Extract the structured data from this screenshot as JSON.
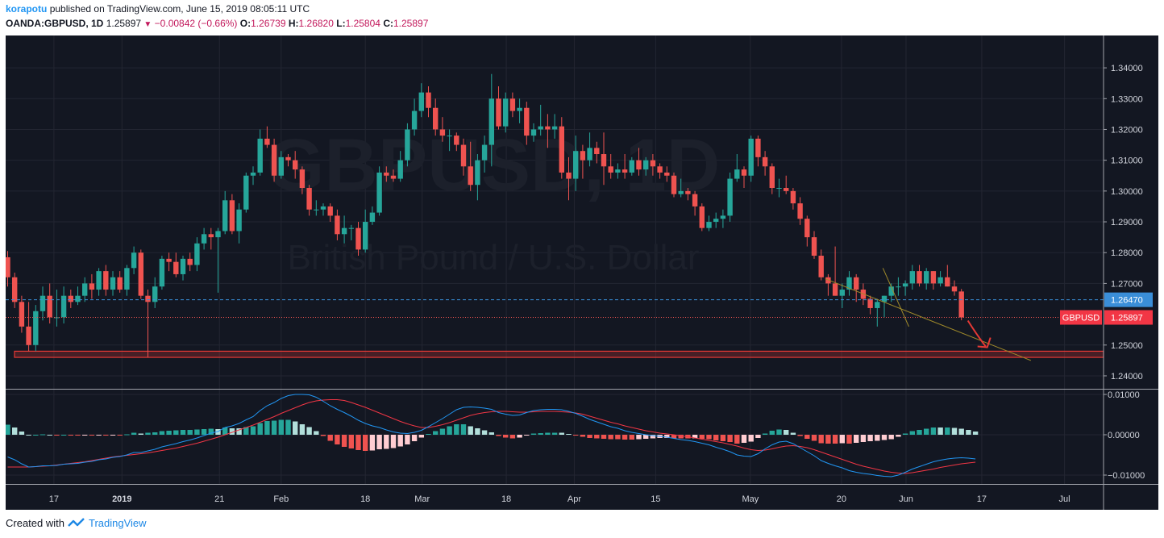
{
  "header": {
    "user": "korapotu",
    "published": "published on TradingView.com, June 15, 2019 08:05:11 UTC",
    "symbol": "OANDA:GBPUSD, 1D",
    "last": "1.25897",
    "change": "−0.00842 (−0.66%)",
    "o_label": "O:",
    "o": "1.26739",
    "h_label": "H:",
    "h": "1.26820",
    "l_label": "L:",
    "l": "1.25804",
    "c_label": "C:",
    "c": "1.25897"
  },
  "footer": {
    "created": "Created with",
    "brand": "TradingView"
  },
  "watermark": {
    "ticker": "GBPUSD, 1D",
    "name": "British Pound / U.S. Dollar"
  },
  "colors": {
    "background": "#131722",
    "grid": "#232632",
    "up": "#26a69a",
    "down": "#ef5350",
    "macd_line": "#2196f3",
    "signal_line": "#f23645",
    "hist_up_strong": "#26a69a",
    "hist_up_weak": "#b2dfdb",
    "hist_down_strong": "#ef5350",
    "hist_down_weak": "#ffcdd2",
    "annotation": "#e53935",
    "trendline": "#a08a2a",
    "price_line_blue": "#3a8ed8"
  },
  "chart_data": [
    {
      "type": "candlestick",
      "title": "GBPUSD, 1D",
      "y_ticks": [
        "1.34000",
        "1.33000",
        "1.32000",
        "1.31000",
        "1.30000",
        "1.29000",
        "1.28000",
        "1.27000",
        "1.25000",
        "1.24000"
      ],
      "x_ticks": [
        "17",
        "2019",
        "21",
        "Feb",
        "18",
        "Mar",
        "18",
        "Apr",
        "15",
        "May",
        "20",
        "Jun",
        "17",
        "Jul"
      ],
      "ylim": [
        1.2358,
        1.3505
      ],
      "last_price_label": "GBPUSD",
      "last_price": "1.25897",
      "blue_level": "1.26470",
      "support_zone": [
        1.246,
        1.248
      ],
      "trendline": {
        "from": [
          "2019-05-16",
          1.2715
        ],
        "to": [
          "2019-06-30",
          1.245
        ]
      },
      "trendline2": {
        "from": [
          "2019-05-28",
          1.275
        ],
        "to": [
          "2019-06-03",
          1.256
        ]
      },
      "arrow": "down",
      "candles": [
        [
          1.2785,
          1.2805,
          1.269,
          1.272
        ],
        [
          1.272,
          1.2735,
          1.262,
          1.264
        ],
        [
          1.264,
          1.266,
          1.254,
          1.256
        ],
        [
          1.256,
          1.264,
          1.248,
          1.25
        ],
        [
          1.25,
          1.263,
          1.248,
          1.261
        ],
        [
          1.261,
          1.269,
          1.258,
          1.266
        ],
        [
          1.266,
          1.27,
          1.257,
          1.259
        ],
        [
          1.259,
          1.268,
          1.256,
          1.259
        ],
        [
          1.259,
          1.269,
          1.257,
          1.266
        ],
        [
          1.266,
          1.268,
          1.262,
          1.264
        ],
        [
          1.264,
          1.269,
          1.263,
          1.266
        ],
        [
          1.266,
          1.272,
          1.264,
          1.27
        ],
        [
          1.27,
          1.273,
          1.265,
          1.268
        ],
        [
          1.268,
          1.275,
          1.266,
          1.274
        ],
        [
          1.274,
          1.276,
          1.266,
          1.268
        ],
        [
          1.268,
          1.274,
          1.266,
          1.272
        ],
        [
          1.272,
          1.274,
          1.267,
          1.268
        ],
        [
          1.268,
          1.276,
          1.266,
          1.275
        ],
        [
          1.275,
          1.282,
          1.273,
          1.28
        ],
        [
          1.28,
          1.281,
          1.265,
          1.266
        ],
        [
          1.266,
          1.268,
          1.246,
          1.264
        ],
        [
          1.264,
          1.272,
          1.262,
          1.269
        ],
        [
          1.269,
          1.279,
          1.268,
          1.278
        ],
        [
          1.278,
          1.28,
          1.274,
          1.277
        ],
        [
          1.277,
          1.28,
          1.272,
          1.273
        ],
        [
          1.273,
          1.279,
          1.271,
          1.278
        ],
        [
          1.278,
          1.28,
          1.274,
          1.276
        ],
        [
          1.276,
          1.285,
          1.274,
          1.283
        ],
        [
          1.283,
          1.288,
          1.281,
          1.286
        ],
        [
          1.286,
          1.288,
          1.281,
          1.285
        ],
        [
          1.285,
          1.288,
          1.267,
          1.287
        ],
        [
          1.287,
          1.3,
          1.286,
          1.297
        ],
        [
          1.297,
          1.299,
          1.286,
          1.287
        ],
        [
          1.287,
          1.296,
          1.283,
          1.294
        ],
        [
          1.294,
          1.306,
          1.293,
          1.305
        ],
        [
          1.305,
          1.308,
          1.302,
          1.306
        ],
        [
          1.306,
          1.32,
          1.305,
          1.317
        ],
        [
          1.317,
          1.321,
          1.314,
          1.315
        ],
        [
          1.315,
          1.317,
          1.303,
          1.305
        ],
        [
          1.305,
          1.313,
          1.304,
          1.311
        ],
        [
          1.311,
          1.312,
          1.308,
          1.31
        ],
        [
          1.31,
          1.313,
          1.304,
          1.307
        ],
        [
          1.307,
          1.308,
          1.299,
          1.301
        ],
        [
          1.301,
          1.302,
          1.292,
          1.294
        ],
        [
          1.294,
          1.297,
          1.292,
          1.294
        ],
        [
          1.294,
          1.296,
          1.292,
          1.295
        ],
        [
          1.295,
          1.296,
          1.29,
          1.292
        ],
        [
          1.292,
          1.294,
          1.284,
          1.286
        ],
        [
          1.286,
          1.292,
          1.283,
          1.288
        ],
        [
          1.288,
          1.289,
          1.284,
          1.288
        ],
        [
          1.288,
          1.29,
          1.279,
          1.281
        ],
        [
          1.281,
          1.294,
          1.28,
          1.29
        ],
        [
          1.29,
          1.295,
          1.289,
          1.293
        ],
        [
          1.293,
          1.308,
          1.292,
          1.306
        ],
        [
          1.306,
          1.308,
          1.303,
          1.305
        ],
        [
          1.305,
          1.307,
          1.303,
          1.304
        ],
        [
          1.304,
          1.313,
          1.303,
          1.31
        ],
        [
          1.31,
          1.322,
          1.308,
          1.32
        ],
        [
          1.32,
          1.33,
          1.318,
          1.326
        ],
        [
          1.326,
          1.335,
          1.324,
          1.332
        ],
        [
          1.332,
          1.334,
          1.324,
          1.327
        ],
        [
          1.327,
          1.33,
          1.318,
          1.32
        ],
        [
          1.32,
          1.324,
          1.316,
          1.318
        ],
        [
          1.318,
          1.32,
          1.313,
          1.318
        ],
        [
          1.318,
          1.319,
          1.313,
          1.315
        ],
        [
          1.315,
          1.317,
          1.305,
          1.308
        ],
        [
          1.308,
          1.316,
          1.3,
          1.302
        ],
        [
          1.302,
          1.312,
          1.297,
          1.31
        ],
        [
          1.31,
          1.318,
          1.306,
          1.315
        ],
        [
          1.315,
          1.338,
          1.308,
          1.33
        ],
        [
          1.33,
          1.334,
          1.32,
          1.321
        ],
        [
          1.321,
          1.332,
          1.319,
          1.33
        ],
        [
          1.33,
          1.332,
          1.324,
          1.326
        ],
        [
          1.326,
          1.33,
          1.322,
          1.327
        ],
        [
          1.327,
          1.329,
          1.315,
          1.318
        ],
        [
          1.318,
          1.322,
          1.316,
          1.32
        ],
        [
          1.32,
          1.328,
          1.318,
          1.321
        ],
        [
          1.321,
          1.325,
          1.314,
          1.32
        ],
        [
          1.32,
          1.325,
          1.317,
          1.321
        ],
        [
          1.321,
          1.324,
          1.304,
          1.306
        ],
        [
          1.306,
          1.311,
          1.297,
          1.304
        ],
        [
          1.304,
          1.318,
          1.3,
          1.313
        ],
        [
          1.313,
          1.315,
          1.304,
          1.31
        ],
        [
          1.31,
          1.319,
          1.308,
          1.314
        ],
        [
          1.314,
          1.316,
          1.309,
          1.312
        ],
        [
          1.312,
          1.319,
          1.302,
          1.308
        ],
        [
          1.308,
          1.312,
          1.304,
          1.306
        ],
        [
          1.306,
          1.309,
          1.304,
          1.307
        ],
        [
          1.307,
          1.312,
          1.304,
          1.306
        ],
        [
          1.306,
          1.311,
          1.305,
          1.31
        ],
        [
          1.31,
          1.314,
          1.305,
          1.307
        ],
        [
          1.307,
          1.311,
          1.305,
          1.31
        ],
        [
          1.31,
          1.312,
          1.305,
          1.308
        ],
        [
          1.308,
          1.309,
          1.304,
          1.306
        ],
        [
          1.306,
          1.308,
          1.303,
          1.305
        ],
        [
          1.305,
          1.306,
          1.298,
          1.299
        ],
        [
          1.299,
          1.304,
          1.298,
          1.3
        ],
        [
          1.3,
          1.301,
          1.297,
          1.299
        ],
        [
          1.299,
          1.3,
          1.292,
          1.295
        ],
        [
          1.295,
          1.296,
          1.287,
          1.288
        ],
        [
          1.288,
          1.292,
          1.287,
          1.29
        ],
        [
          1.29,
          1.293,
          1.288,
          1.291
        ],
        [
          1.291,
          1.294,
          1.288,
          1.292
        ],
        [
          1.292,
          1.306,
          1.29,
          1.304
        ],
        [
          1.304,
          1.312,
          1.303,
          1.307
        ],
        [
          1.307,
          1.308,
          1.301,
          1.305
        ],
        [
          1.305,
          1.318,
          1.303,
          1.317
        ],
        [
          1.317,
          1.318,
          1.308,
          1.311
        ],
        [
          1.311,
          1.313,
          1.305,
          1.308
        ],
        [
          1.308,
          1.309,
          1.299,
          1.301
        ],
        [
          1.301,
          1.304,
          1.298,
          1.301
        ],
        [
          1.301,
          1.305,
          1.299,
          1.3
        ],
        [
          1.3,
          1.301,
          1.294,
          1.296
        ],
        [
          1.296,
          1.298,
          1.289,
          1.291
        ],
        [
          1.291,
          1.292,
          1.282,
          1.285
        ],
        [
          1.285,
          1.287,
          1.278,
          1.279
        ],
        [
          1.279,
          1.281,
          1.271,
          1.272
        ],
        [
          1.272,
          1.273,
          1.266,
          1.27
        ],
        [
          1.27,
          1.282,
          1.266,
          1.266
        ],
        [
          1.266,
          1.27,
          1.262,
          1.268
        ],
        [
          1.268,
          1.274,
          1.266,
          1.272
        ],
        [
          1.272,
          1.273,
          1.264,
          1.268
        ],
        [
          1.268,
          1.27,
          1.263,
          1.265
        ],
        [
          1.265,
          1.266,
          1.26,
          1.262
        ],
        [
          1.262,
          1.265,
          1.256,
          1.264
        ],
        [
          1.264,
          1.266,
          1.259,
          1.266
        ],
        [
          1.266,
          1.27,
          1.264,
          1.269
        ],
        [
          1.269,
          1.272,
          1.266,
          1.269
        ],
        [
          1.269,
          1.271,
          1.266,
          1.27
        ],
        [
          1.27,
          1.276,
          1.268,
          1.274
        ],
        [
          1.274,
          1.276,
          1.269,
          1.27
        ],
        [
          1.27,
          1.275,
          1.268,
          1.274
        ],
        [
          1.274,
          1.274,
          1.268,
          1.27
        ],
        [
          1.27,
          1.274,
          1.269,
          1.272
        ],
        [
          1.272,
          1.276,
          1.269,
          1.269
        ],
        [
          1.269,
          1.271,
          1.266,
          1.2674
        ],
        [
          1.26739,
          1.2682,
          1.25804,
          1.25897
        ]
      ]
    },
    {
      "type": "macd",
      "y_ticks": [
        "0.01000",
        "0.00000",
        "−0.01000"
      ],
      "ylim": [
        -0.0122,
        0.0112
      ],
      "macd": [
        -0.0055,
        -0.0062,
        -0.0072,
        -0.008,
        -0.0079,
        -0.0077,
        -0.0077,
        -0.0076,
        -0.0073,
        -0.0072,
        -0.0071,
        -0.0068,
        -0.0066,
        -0.0062,
        -0.006,
        -0.0056,
        -0.0054,
        -0.005,
        -0.0044,
        -0.0044,
        -0.004,
        -0.0036,
        -0.003,
        -0.0026,
        -0.0022,
        -0.0017,
        -0.0013,
        -0.0008,
        -0.0002,
        0.0004,
        0.0008,
        0.0018,
        0.0022,
        0.0028,
        0.0037,
        0.0045,
        0.006,
        0.0072,
        0.008,
        0.009,
        0.0097,
        0.01,
        0.01,
        0.0099,
        0.0093,
        0.0083,
        0.0072,
        0.0063,
        0.0055,
        0.0046,
        0.0036,
        0.0028,
        0.0022,
        0.0018,
        0.0012,
        0.0007,
        0.0004,
        0.0003,
        0.0006,
        0.0011,
        0.002,
        0.003,
        0.004,
        0.0051,
        0.0062,
        0.0068,
        0.0069,
        0.0068,
        0.0066,
        0.0063,
        0.0055,
        0.0051,
        0.0048,
        0.0049,
        0.0055,
        0.006,
        0.0062,
        0.0063,
        0.0063,
        0.0062,
        0.0058,
        0.0053,
        0.0046,
        0.0038,
        0.0032,
        0.0026,
        0.002,
        0.0016,
        0.001,
        0.0006,
        0.0003,
        0.0,
        -0.0002,
        -0.0004,
        -0.0006,
        -0.0009,
        -0.0012,
        -0.0014,
        -0.0017,
        -0.0021,
        -0.0025,
        -0.0031,
        -0.0036,
        -0.0042,
        -0.005,
        -0.0053,
        -0.0054,
        -0.0047,
        -0.0035,
        -0.0025,
        -0.0018,
        -0.0016,
        -0.0022,
        -0.0032,
        -0.0042,
        -0.0052,
        -0.0064,
        -0.0071,
        -0.0077,
        -0.0082,
        -0.0089,
        -0.0093,
        -0.0096,
        -0.0098,
        -0.0101,
        -0.0103,
        -0.0104,
        -0.01,
        -0.0093,
        -0.0085,
        -0.0079,
        -0.0073,
        -0.0067,
        -0.0063,
        -0.006,
        -0.0058,
        -0.0057,
        -0.0058,
        -0.006
      ],
      "signal": [
        -0.008,
        -0.008,
        -0.008,
        -0.008,
        -0.0079,
        -0.0078,
        -0.0077,
        -0.0075,
        -0.0073,
        -0.0071,
        -0.0069,
        -0.0067,
        -0.0064,
        -0.0061,
        -0.0058,
        -0.0055,
        -0.0053,
        -0.0051,
        -0.0049,
        -0.0047,
        -0.0045,
        -0.0042,
        -0.0039,
        -0.0036,
        -0.0033,
        -0.0029,
        -0.0025,
        -0.0021,
        -0.0016,
        -0.0011,
        -0.0006,
        0.0,
        0.0006,
        0.0012,
        0.0018,
        0.0024,
        0.0031,
        0.0038,
        0.0045,
        0.0053,
        0.006,
        0.0067,
        0.0074,
        0.008,
        0.0084,
        0.0086,
        0.0087,
        0.0087,
        0.0085,
        0.008,
        0.0074,
        0.0068,
        0.0061,
        0.0054,
        0.0047,
        0.004,
        0.0033,
        0.0027,
        0.0022,
        0.0018,
        0.0018,
        0.0021,
        0.0025,
        0.003,
        0.0036,
        0.0042,
        0.0048,
        0.0052,
        0.0055,
        0.0057,
        0.0058,
        0.0058,
        0.0057,
        0.0056,
        0.0056,
        0.0057,
        0.0058,
        0.0058,
        0.0058,
        0.0057,
        0.0056,
        0.0054,
        0.0051,
        0.0046,
        0.0041,
        0.0036,
        0.0031,
        0.0027,
        0.0022,
        0.0018,
        0.0014,
        0.001,
        0.0007,
        0.0004,
        0.0002,
        0.0,
        -0.0003,
        -0.0005,
        -0.0008,
        -0.0011,
        -0.0014,
        -0.0017,
        -0.002,
        -0.0024,
        -0.0028,
        -0.0033,
        -0.0037,
        -0.0039,
        -0.0038,
        -0.0035,
        -0.0031,
        -0.0028,
        -0.0027,
        -0.0029,
        -0.0032,
        -0.0037,
        -0.0043,
        -0.0049,
        -0.0055,
        -0.0061,
        -0.0067,
        -0.0073,
        -0.0078,
        -0.0082,
        -0.0086,
        -0.009,
        -0.0093,
        -0.0095,
        -0.0096,
        -0.0094,
        -0.0091,
        -0.0088,
        -0.0085,
        -0.0081,
        -0.0078,
        -0.0075,
        -0.0072,
        -0.007,
        -0.0068
      ]
    }
  ]
}
